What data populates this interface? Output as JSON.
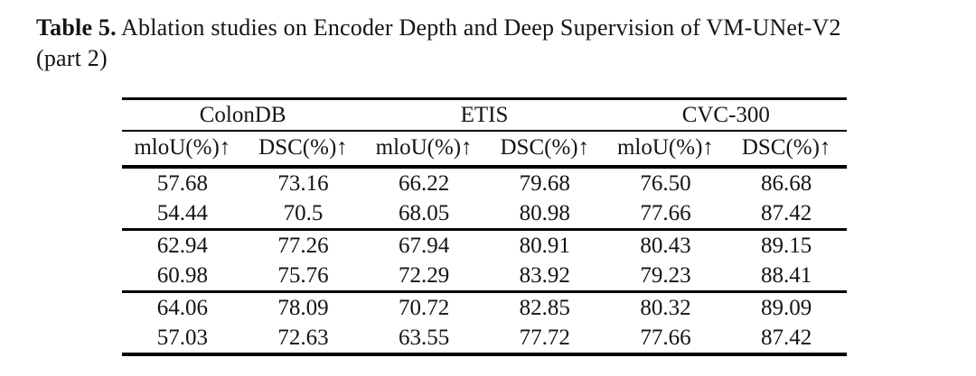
{
  "caption": {
    "label": "Table 5.",
    "body": "Ablation studies on Encoder Depth and Deep Supervision of VM-UNet-V2",
    "part": "(part 2)"
  },
  "table": {
    "groups": [
      "ColonDB",
      "ETIS",
      "CVC-300"
    ],
    "columns": [
      "mloU(%)↑",
      "DSC(%)↑",
      "mloU(%)↑",
      "DSC(%)↑",
      "mloU(%)↑",
      "DSC(%)↑"
    ],
    "rows": [
      [
        "57.68",
        "73.16",
        "66.22",
        "79.68",
        "76.50",
        "86.68"
      ],
      [
        "54.44",
        "70.5",
        "68.05",
        "80.98",
        "77.66",
        "87.42"
      ],
      [
        "62.94",
        "77.26",
        "67.94",
        "80.91",
        "80.43",
        "89.15"
      ],
      [
        "60.98",
        "75.76",
        "72.29",
        "83.92",
        "79.23",
        "88.41"
      ],
      [
        "64.06",
        "78.09",
        "70.72",
        "82.85",
        "80.32",
        "89.09"
      ],
      [
        "57.03",
        "72.63",
        "63.55",
        "77.72",
        "77.66",
        "87.42"
      ]
    ]
  }
}
